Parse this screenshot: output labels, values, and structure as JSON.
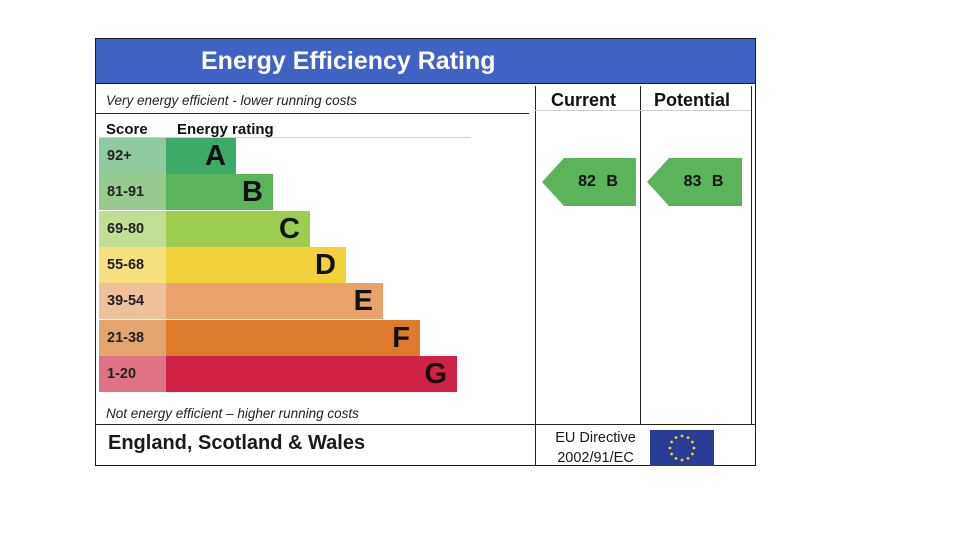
{
  "title": "Energy Efficiency Rating",
  "captions": {
    "top": "Very energy efficient - lower running costs",
    "bottom": "Not energy efficient – higher running costs"
  },
  "columns": {
    "current": "Current",
    "potential": "Potential"
  },
  "table_headers": {
    "score": "Score",
    "rating": "Energy rating"
  },
  "bands": [
    {
      "range": "92+",
      "letter": "A",
      "color": "#3daa6a",
      "range_color": "#8fcaa0"
    },
    {
      "range": "81-91",
      "letter": "B",
      "color": "#5bb35a",
      "range_color": "#95cc8e"
    },
    {
      "range": "69-80",
      "letter": "C",
      "color": "#9ccd4f",
      "range_color": "#c1de93"
    },
    {
      "range": "55-68",
      "letter": "D",
      "color": "#f3d13a",
      "range_color": "#f6e17e"
    },
    {
      "range": "39-54",
      "letter": "E",
      "color": "#e9a26a",
      "range_color": "#eec19b"
    },
    {
      "range": "21-38",
      "letter": "F",
      "color": "#dd7a2b",
      "range_color": "#e5a46e"
    },
    {
      "range": "1-20",
      "letter": "G",
      "color": "#cf2245",
      "range_color": "#e07285"
    }
  ],
  "current": {
    "score": "82",
    "band": "B",
    "label": "82  B",
    "color": "#5bb35a"
  },
  "potential": {
    "score": "83",
    "band": "B",
    "label": "83  B",
    "color": "#5bb35a"
  },
  "footer": {
    "region": "England, Scotland & Wales",
    "directive_line1": "EU Directive",
    "directive_line2": "2002/91/EC",
    "flag_color": "#2a3c93",
    "star_color": "#f4d22a"
  }
}
